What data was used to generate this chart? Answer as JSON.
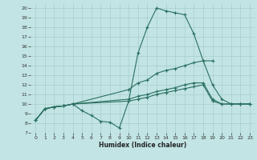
{
  "xlabel": "Humidex (Indice chaleur)",
  "xlim": [
    -0.5,
    23.5
  ],
  "ylim": [
    7,
    20.5
  ],
  "yticks": [
    7,
    8,
    9,
    10,
    11,
    12,
    13,
    14,
    15,
    16,
    17,
    18,
    19,
    20
  ],
  "xticks": [
    0,
    1,
    2,
    3,
    4,
    5,
    6,
    7,
    8,
    9,
    10,
    11,
    12,
    13,
    14,
    15,
    16,
    17,
    18,
    19,
    20,
    21,
    22,
    23
  ],
  "bg_color": "#c2e4e4",
  "line_color": "#2a7060",
  "grid_color": "#a8cccc",
  "line1_x": [
    0,
    1,
    2,
    3,
    4,
    5,
    6,
    7,
    8,
    9,
    10,
    11,
    12,
    13,
    14,
    15,
    16,
    17,
    18,
    19
  ],
  "line1_y": [
    8.3,
    9.5,
    9.7,
    9.8,
    10.0,
    9.3,
    8.8,
    8.2,
    8.1,
    7.5,
    10.3,
    15.3,
    18.0,
    20.0,
    19.7,
    19.5,
    19.3,
    17.3,
    14.5,
    14.5
  ],
  "line2_x": [
    0,
    1,
    2,
    3,
    4,
    10,
    11,
    12,
    13,
    14,
    15,
    16,
    17,
    18,
    19,
    20,
    21,
    22,
    23
  ],
  "line2_y": [
    8.3,
    9.5,
    9.7,
    9.8,
    10.0,
    11.5,
    12.2,
    12.5,
    13.2,
    13.5,
    13.7,
    14.0,
    14.3,
    14.5,
    12.0,
    10.5,
    10.0,
    10.0,
    10.0
  ],
  "line3_x": [
    0,
    1,
    2,
    3,
    4,
    10,
    11,
    12,
    13,
    14,
    15,
    16,
    17,
    18,
    19,
    20,
    21,
    22,
    23
  ],
  "line3_y": [
    8.3,
    9.5,
    9.7,
    9.8,
    10.0,
    10.5,
    10.8,
    11.0,
    11.3,
    11.5,
    11.7,
    12.0,
    12.2,
    12.2,
    10.5,
    10.0,
    10.0,
    10.0,
    10.0
  ],
  "line4_x": [
    0,
    1,
    2,
    3,
    4,
    10,
    11,
    12,
    13,
    14,
    15,
    16,
    17,
    18,
    19,
    20,
    21,
    22,
    23
  ],
  "line4_y": [
    8.3,
    9.5,
    9.7,
    9.8,
    10.0,
    10.3,
    10.5,
    10.7,
    11.0,
    11.2,
    11.4,
    11.6,
    11.8,
    12.0,
    10.3,
    10.0,
    10.0,
    10.0,
    10.0
  ]
}
